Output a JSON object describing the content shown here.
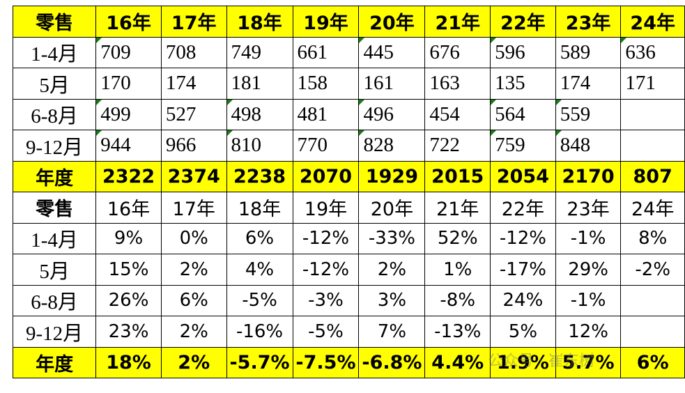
{
  "table": {
    "rows": [
      [
        "零售",
        "16年",
        "17年",
        "18年",
        "19年",
        "20年",
        "21年",
        "22年",
        "23年",
        "24年"
      ],
      [
        "1-4月",
        "709",
        "708",
        "749",
        "661",
        "445",
        "676",
        "596",
        "589",
        "636"
      ],
      [
        "5月",
        "170",
        "174",
        "181",
        "158",
        "161",
        "163",
        "135",
        "174",
        "171"
      ],
      [
        "6-8月",
        "499",
        "527",
        "498",
        "481",
        "496",
        "454",
        "564",
        "559",
        null
      ],
      [
        "9-12月",
        "944",
        "966",
        "810",
        "770",
        "828",
        "722",
        "759",
        "848",
        null
      ],
      [
        "年度",
        "2322",
        "2374",
        "2238",
        "2070",
        "1929",
        "2015",
        "2054",
        "2170",
        "807"
      ],
      [
        "零售",
        "16年",
        "17年",
        "18年",
        "19年",
        "20年",
        "21年",
        "22年",
        "23年",
        "24年"
      ],
      [
        "1-4月",
        "9%",
        "0%",
        "6%",
        "-12%",
        "-33%",
        "52%",
        "-12%",
        "-1%",
        "8%"
      ],
      [
        "5月",
        "15%",
        "2%",
        "4%",
        "-12%",
        "2%",
        "1%",
        "-17%",
        "29%",
        "-2%"
      ],
      [
        "6-8月",
        "26%",
        "6%",
        "-5%",
        "-3%",
        "3%",
        "-8%",
        "24%",
        "-1%",
        null
      ],
      [
        "9-12月",
        "23%",
        "2%",
        "-16%",
        "-5%",
        "7%",
        "-13%",
        "5%",
        "12%",
        null
      ],
      [
        "年度",
        "18%",
        "2%",
        "-5.7%",
        "-7.5%",
        "-6.8%",
        "4.4%",
        "1.9%",
        "5.7%",
        "6%"
      ]
    ]
  },
  "watermark": "公众号 · 崔东树"
}
